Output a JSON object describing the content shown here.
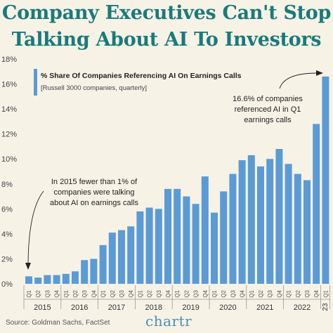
{
  "title_line1": "Company Executives Can't Stop",
  "title_line2": "Talking About AI To Investors",
  "source": "Source: Goldman Sachs, FactSet",
  "brand": "chartr",
  "colors": {
    "bar": "#5b9bd5",
    "title": "#1a7a7a",
    "background": "#f7f2e6",
    "text": "#333333"
  },
  "chart_data": {
    "type": "bar",
    "title": "% Share Of Companies Referencing AI On Earnings Calls",
    "subtitle": "[Russell 3000 companies, quarterly]",
    "y_unit": "%",
    "ylim": [
      0,
      18
    ],
    "yticks": [
      "0%",
      "2%",
      "4%",
      "6%",
      "8%",
      "10%",
      "12%",
      "14%",
      "16%",
      "18%"
    ],
    "grid": false,
    "categories": [
      "2015 Q1",
      "2015 Q2",
      "2015 Q3",
      "2015 Q4",
      "2016 Q1",
      "2016 Q2",
      "2016 Q3",
      "2016 Q4",
      "2017 Q1",
      "2017 Q2",
      "2017 Q3",
      "2017 Q4",
      "2018 Q1",
      "2018 Q2",
      "2018 Q3",
      "2018 Q4",
      "2019 Q1",
      "2019 Q2",
      "2019 Q3",
      "2019 Q4",
      "2020 Q1",
      "2020 Q2",
      "2020 Q3",
      "2020 Q4",
      "2021 Q1",
      "2021 Q2",
      "2021 Q3",
      "2021 Q4",
      "2022 Q1",
      "2022 Q2",
      "2022 Q3",
      "2022 Q4",
      "2023 Q1"
    ],
    "quarter_labels": [
      "Q1",
      "Q2",
      "Q3",
      "Q4",
      "Q1",
      "Q2",
      "Q3",
      "Q4",
      "Q1",
      "Q2",
      "Q3",
      "Q4",
      "Q1",
      "Q2",
      "Q3",
      "Q4",
      "Q1",
      "Q2",
      "Q3",
      "Q4",
      "Q1",
      "Q2",
      "Q3",
      "Q4",
      "Q1",
      "Q2",
      "Q3",
      "Q4",
      "Q1",
      "Q2",
      "Q3",
      "Q4",
      "Q1"
    ],
    "year_labels": [
      "2015",
      "2016",
      "2017",
      "2018",
      "2019",
      "2020",
      "2021",
      "2022",
      "23"
    ],
    "values": [
      0.6,
      0.5,
      0.7,
      0.7,
      0.8,
      1.0,
      1.9,
      2.0,
      3.1,
      4.1,
      4.3,
      4.6,
      5.8,
      6.1,
      6.0,
      7.6,
      7.6,
      7.0,
      6.4,
      8.6,
      5.7,
      7.4,
      8.8,
      9.9,
      10.3,
      9.4,
      10.0,
      10.8,
      9.6,
      8.8,
      8.3,
      12.8,
      16.6
    ],
    "annotations": [
      {
        "text": [
          "In 2015 fewer than 1% of",
          "companies were talking",
          "about AI on earnings calls"
        ],
        "target_index": 0
      },
      {
        "text": [
          "16.6% of companies",
          "referenced AI in Q1",
          "earnings calls"
        ],
        "target_index": 32
      }
    ]
  }
}
